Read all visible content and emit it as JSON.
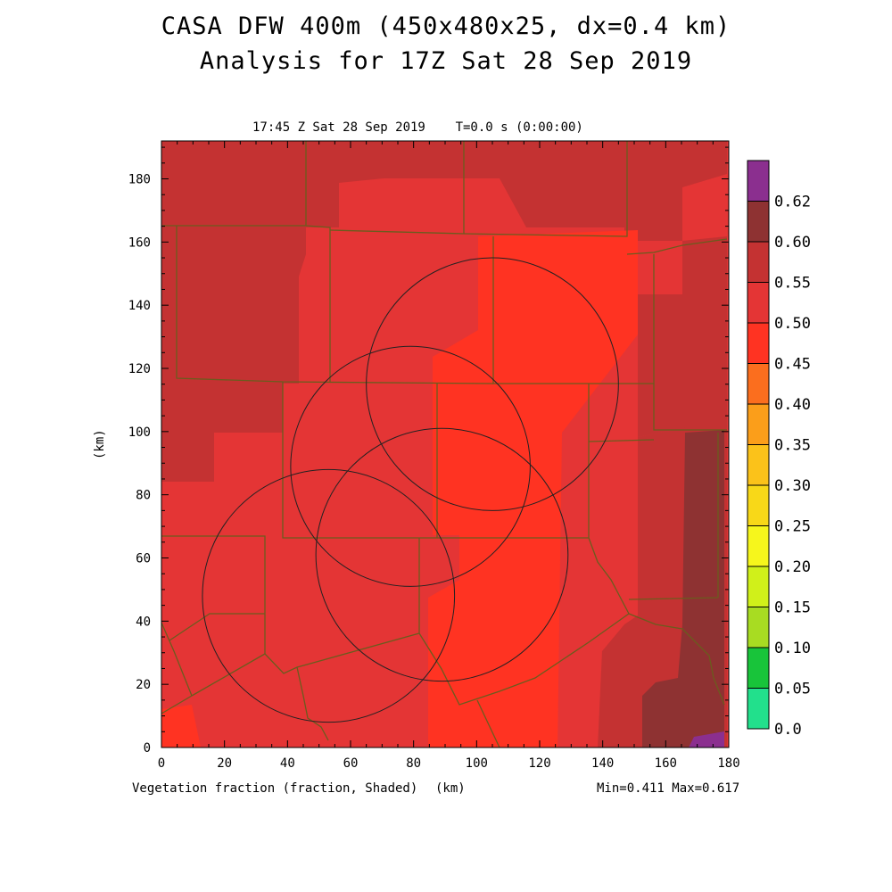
{
  "title_line1": "CASA DFW 400m (450x480x25, dx=0.4 km)",
  "title_line2": "Analysis for 17Z Sat 28 Sep 2019",
  "subtitle": "17:45 Z Sat 28 Sep 2019    T=0.0 s (0:00:00)",
  "field_label": "Vegetation fraction (fraction, Shaded)",
  "xunit": "(km)",
  "yunit": "(km)",
  "minmax": "Min=0.411 Max=0.617",
  "colors": {
    "c040_045": "#ff3322",
    "c045_050": "#e43535",
    "c050_055": "#c43232",
    "c055_060": "#8e3232",
    "c060_065": "#8b2f8f"
  },
  "chart_data": {
    "type": "heatmap",
    "xlim": [
      0,
      180
    ],
    "ylim": [
      0,
      192
    ],
    "xticks": [
      "0",
      "20",
      "40",
      "60",
      "80",
      "100",
      "120",
      "140",
      "160",
      "180"
    ],
    "yticks": [
      "0",
      "20",
      "40",
      "60",
      "80",
      "100",
      "120",
      "140",
      "160",
      "180"
    ],
    "colorbar": {
      "labels": [
        "0.0",
        "0.05",
        "0.10",
        "0.15",
        "0.20",
        "0.25",
        "0.30",
        "0.35",
        "0.40",
        "0.45",
        "0.50",
        "0.55",
        "0.60",
        "0.62"
      ],
      "colors": [
        "#22e08c",
        "#18c43a",
        "#a8dc22",
        "#d0f01a",
        "#f6f61c",
        "#f8d818",
        "#fbc21a",
        "#fb9e1a",
        "#fb6e1e",
        "#ff3322",
        "#e43535",
        "#c43232",
        "#8e3232",
        "#8b2f8f"
      ]
    },
    "radar_circles": [
      {
        "cx": 79,
        "cy": 89,
        "r": 38
      },
      {
        "cx": 105,
        "cy": 115,
        "r": 40
      },
      {
        "cx": 53,
        "cy": 48,
        "r": 40
      },
      {
        "cx": 89,
        "cy": 61,
        "r": 40
      }
    ],
    "regions": [
      {
        "level": "c050_055",
        "x": [
          0,
          180
        ],
        "y": [
          165,
          192
        ]
      },
      {
        "level": "c050_055",
        "x": [
          0,
          46
        ],
        "y": [
          84,
          165
        ]
      },
      {
        "level": "c055_060",
        "x": [
          168,
          180
        ],
        "y": [
          0,
          100
        ]
      },
      {
        "level": "c060_065",
        "x": [
          168,
          180
        ],
        "y": [
          0,
          4
        ]
      }
    ],
    "min": 0.411,
    "max": 0.617
  }
}
